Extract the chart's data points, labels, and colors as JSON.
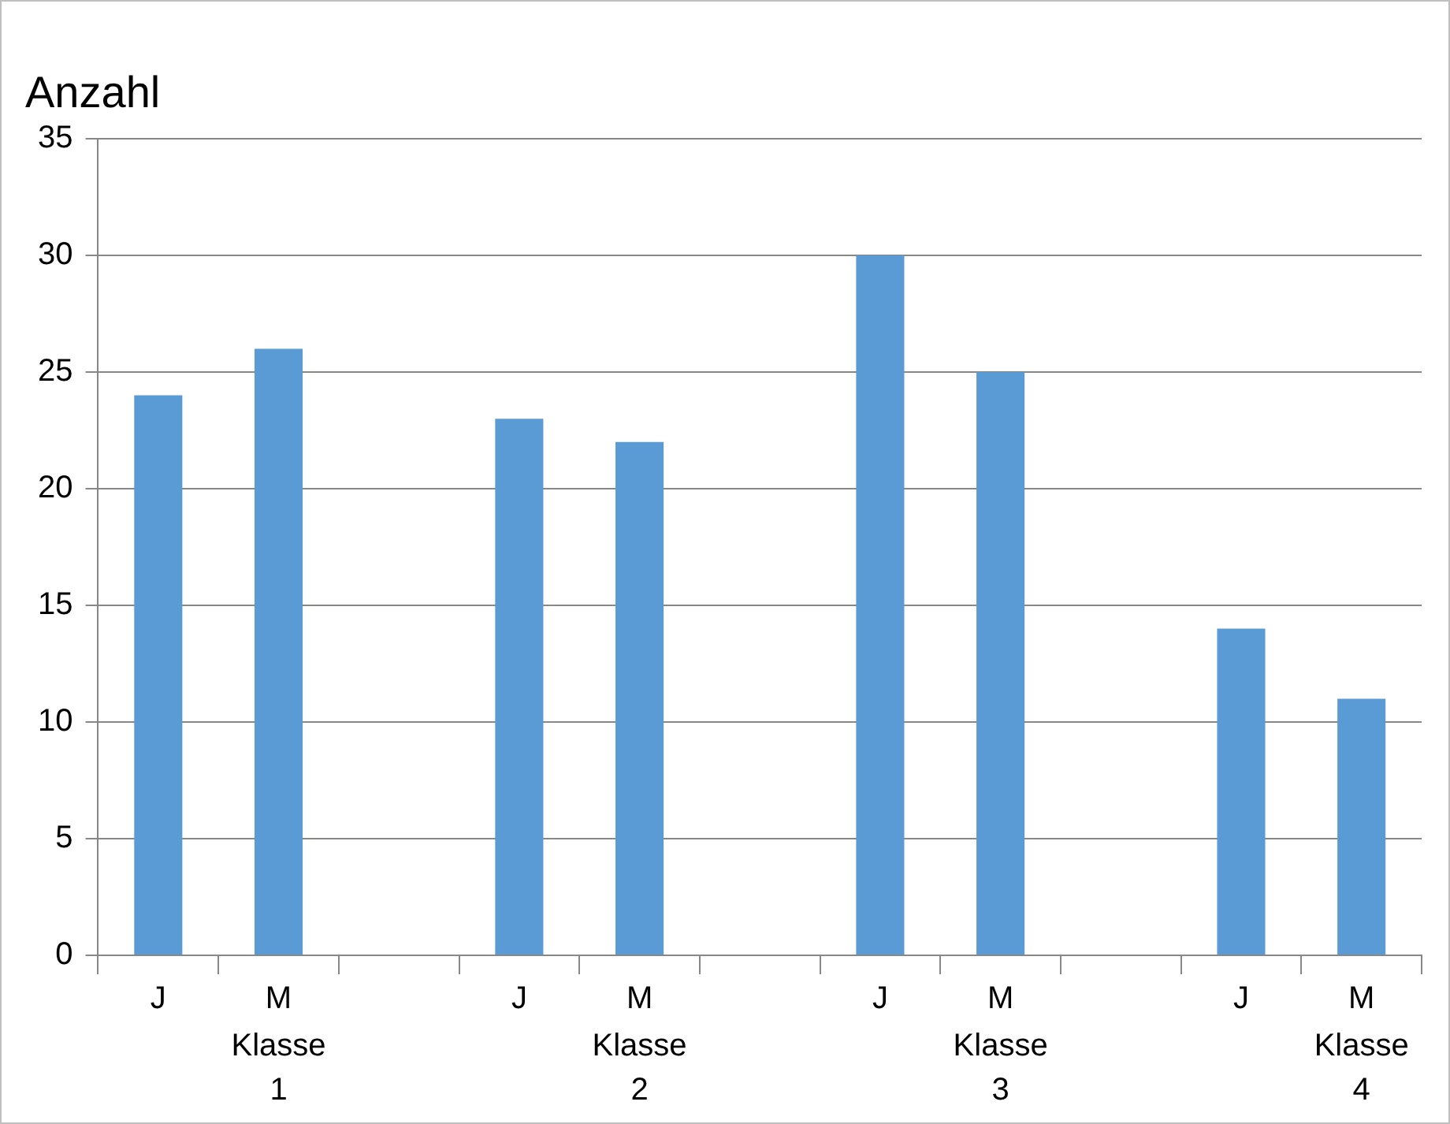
{
  "chart_data": {
    "type": "bar",
    "ylabel": "Anzahl",
    "categories": [
      "J",
      "M",
      null,
      "J",
      "M",
      null,
      "J",
      "M",
      null,
      "J",
      "M"
    ],
    "values": [
      24,
      26,
      null,
      23,
      22,
      null,
      30,
      25,
      null,
      14,
      11
    ],
    "color": "#5b9bd5",
    "ylim": [
      0,
      35
    ],
    "yticks": [
      0,
      5,
      10,
      15,
      20,
      25,
      30,
      35
    ],
    "grid": "y",
    "legend": false,
    "annotations": [
      "Klasse 1",
      "Klasse 2",
      "Klasse 3",
      "Klasse 4"
    ]
  }
}
